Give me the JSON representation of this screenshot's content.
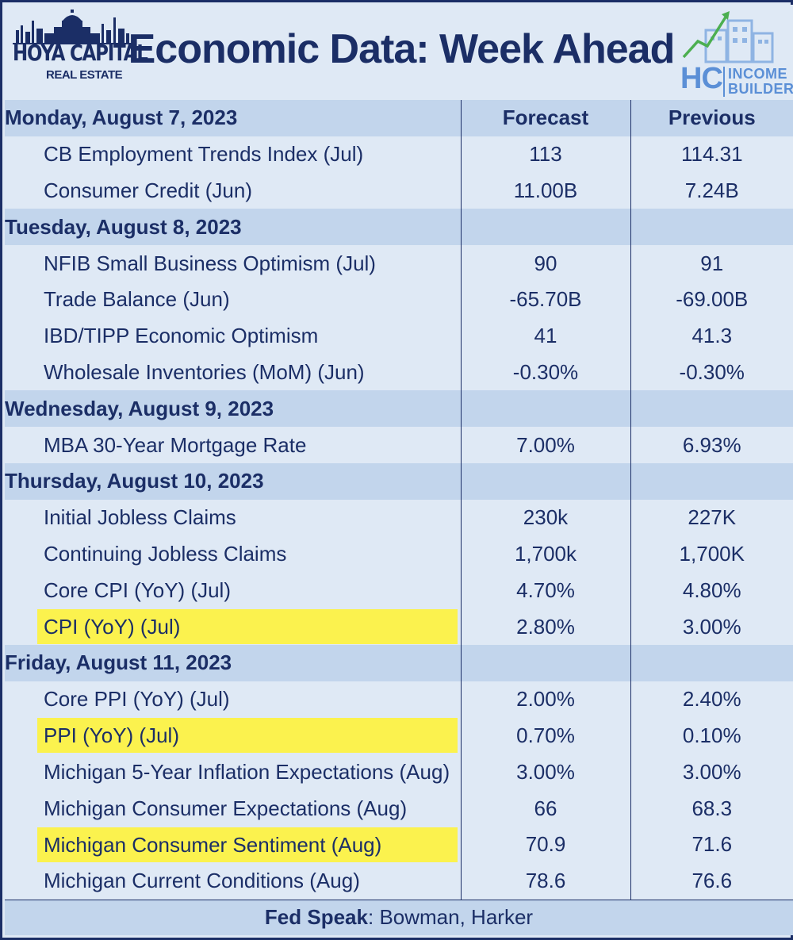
{
  "header": {
    "title": "Economic Data: Week Ahead",
    "logo_left": {
      "brand": "HOYA CAPITAL",
      "sub": "REAL ESTATE"
    },
    "logo_right": {
      "short": "HC",
      "line1": "INCOME",
      "line2": "BUILDER"
    }
  },
  "columns": {
    "forecast": "Forecast",
    "previous": "Previous"
  },
  "days": [
    {
      "date": "Monday, August 7, 2023",
      "show_columns": true,
      "items": [
        {
          "name": "CB Employment Trends Index (Jul)",
          "forecast": "113",
          "previous": "114.31",
          "highlight": false
        },
        {
          "name": "Consumer Credit (Jun)",
          "forecast": "11.00B",
          "previous": "7.24B",
          "highlight": false
        }
      ]
    },
    {
      "date": "Tuesday, August 8, 2023",
      "show_columns": false,
      "items": [
        {
          "name": "NFIB Small Business Optimism (Jul)",
          "forecast": "90",
          "previous": "91",
          "highlight": false
        },
        {
          "name": "Trade Balance (Jun)",
          "forecast": "-65.70B",
          "previous": "-69.00B",
          "highlight": false
        },
        {
          "name": "IBD/TIPP Economic Optimism",
          "forecast": "41",
          "previous": "41.3",
          "highlight": false
        },
        {
          "name": "Wholesale Inventories (MoM) (Jun)",
          "forecast": "-0.30%",
          "previous": "-0.30%",
          "highlight": false
        }
      ]
    },
    {
      "date": "Wednesday, August 9, 2023",
      "show_columns": false,
      "items": [
        {
          "name": "MBA 30-Year Mortgage Rate",
          "forecast": "7.00%",
          "previous": "6.93%",
          "highlight": false
        }
      ]
    },
    {
      "date": "Thursday, August 10, 2023",
      "show_columns": false,
      "items": [
        {
          "name": "Initial Jobless Claims",
          "forecast": "230k",
          "previous": "227K",
          "highlight": false
        },
        {
          "name": "Continuing Jobless Claims",
          "forecast": "1,700k",
          "previous": "1,700K",
          "highlight": false
        },
        {
          "name": "Core CPI (YoY) (Jul)",
          "forecast": "4.70%",
          "previous": "4.80%",
          "highlight": false
        },
        {
          "name": "CPI (YoY) (Jul)",
          "forecast": "2.80%",
          "previous": "3.00%",
          "highlight": true
        }
      ]
    },
    {
      "date": "Friday, August 11, 2023",
      "show_columns": false,
      "items": [
        {
          "name": "Core PPI (YoY) (Jul)",
          "forecast": "2.00%",
          "previous": "2.40%",
          "highlight": false
        },
        {
          "name": "PPI (YoY) (Jul)",
          "forecast": "0.70%",
          "previous": "0.10%",
          "highlight": true
        },
        {
          "name": "Michigan 5-Year Inflation Expectations (Aug)",
          "forecast": "3.00%",
          "previous": "3.00%",
          "highlight": false
        },
        {
          "name": "Michigan Consumer Expectations (Aug)",
          "forecast": "66",
          "previous": "68.3",
          "highlight": false
        },
        {
          "name": "Michigan Consumer Sentiment (Aug)",
          "forecast": "70.9",
          "previous": "71.6",
          "highlight": true
        },
        {
          "name": "Michigan Current Conditions (Aug)",
          "forecast": "78.6",
          "previous": "76.6",
          "highlight": false
        }
      ]
    }
  ],
  "footer": {
    "label": "Fed Speak",
    "separator": ":",
    "value": " Bowman, Harker"
  },
  "colors": {
    "navy": "#1b2e66",
    "day_row": "#c2d5ec",
    "item_row": "#dfe9f5",
    "highlight": "#fbf24e",
    "logo_blue": "#5b8fd6",
    "logo_green": "#4caf50"
  }
}
